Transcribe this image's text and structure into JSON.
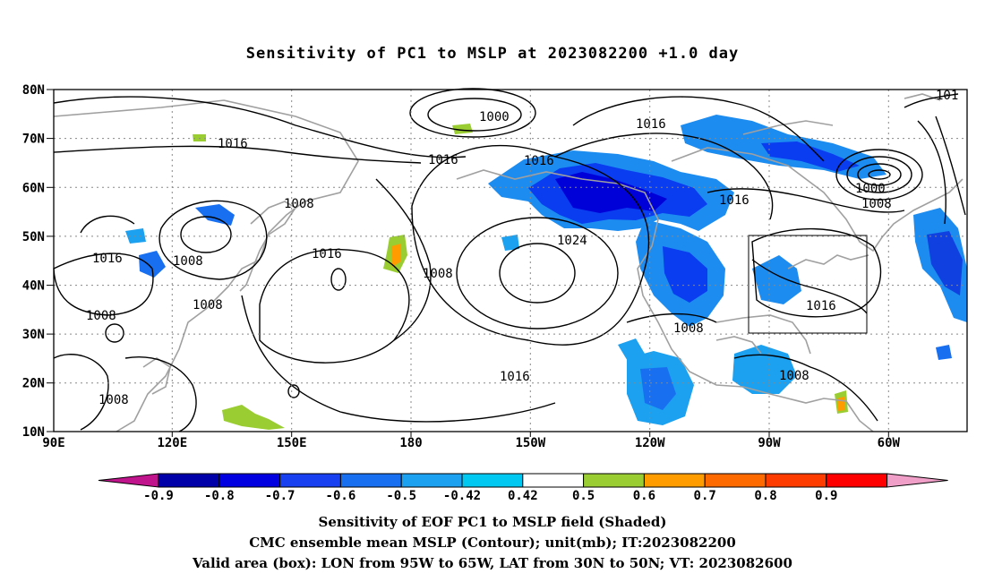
{
  "title": "Sensitivity of PC1 to MSLP at 2023082200 +1.0 day",
  "y_ticks": [
    "80N",
    "70N",
    "60N",
    "50N",
    "40N",
    "30N",
    "20N",
    "10N"
  ],
  "x_ticks": [
    "90E",
    "120E",
    "150E",
    "180",
    "150W",
    "120W",
    "90W",
    "60W"
  ],
  "contour_labels": [
    {
      "text": "1000"
    },
    {
      "text": "1016"
    },
    {
      "text": "1016"
    },
    {
      "text": "1016"
    },
    {
      "text": "1008"
    },
    {
      "text": "1016"
    },
    {
      "text": "1008"
    },
    {
      "text": "1016"
    },
    {
      "text": "1008"
    },
    {
      "text": "1008"
    },
    {
      "text": "1016"
    },
    {
      "text": "1008"
    },
    {
      "text": "1024"
    },
    {
      "text": "1016"
    },
    {
      "text": "1008"
    },
    {
      "text": "1016"
    },
    {
      "text": "1000"
    },
    {
      "text": "1008"
    },
    {
      "text": "1016"
    },
    {
      "text": "1008"
    },
    {
      "text": "1008"
    },
    {
      "text": "101"
    }
  ],
  "colorbar": {
    "labels": [
      "-0.9",
      "-0.8",
      "-0.7",
      "-0.6",
      "-0.5",
      "-0.42",
      "0.42",
      "0.5",
      "0.6",
      "0.7",
      "0.8",
      "0.9"
    ],
    "colors": [
      "#c0148c",
      "#0000a8",
      "#0000e0",
      "#1840f0",
      "#1870f0",
      "#1ca0f0",
      "#00c8f0",
      "#ffffff",
      "#9acd32",
      "#ff9c00",
      "#ff6a00",
      "#ff3c00",
      "#ff0000",
      "#f0a0c8"
    ]
  },
  "valid_box": {
    "lon_from": "95W",
    "lon_to": "65W",
    "lat_from": "30N",
    "lat_to": "50N"
  },
  "captions": [
    "Sensitivity of EOF PC1 to MSLP field (Shaded)",
    "CMC ensemble mean MSLP (Contour); unit(mb); IT:2023082200",
    "Valid area (box): LON from 95W to 65W, LAT from 30N to 50N; VT: 2023082600"
  ]
}
